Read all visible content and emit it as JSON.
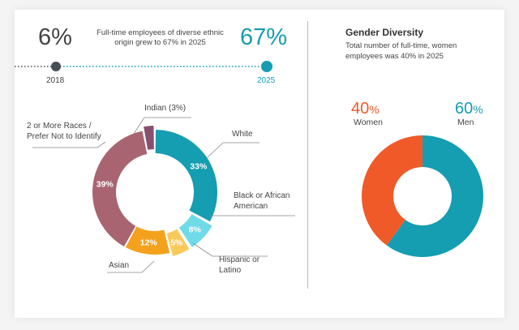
{
  "timeline": {
    "start_value": "6%",
    "end_value": "67%",
    "description_line1": "Full-time employees of diverse ethnic",
    "description_line2": "origin grew to 67% in 2025",
    "start_year": "2018",
    "end_year": "2025"
  },
  "gender": {
    "title": "Gender Diversity",
    "subtitle_line1": "Total number of full-time, women",
    "subtitle_line2": "employees was 40% in 2025",
    "women_value": "40",
    "men_value": "60",
    "percent_sign": "%",
    "women_label": "Women",
    "men_label": "Men"
  },
  "colors": {
    "teal": "#159db2",
    "orange": "#f05a28",
    "mauve": "#a86571",
    "plum": "#8a4f6e",
    "light_teal": "#6fdbe8",
    "amber": "#f4a21e",
    "yellow": "#f9c95a"
  },
  "chart_data": [
    {
      "type": "pie",
      "variant": "donut",
      "labels": [
        "White",
        "Black or African American",
        "Hispanic or Latino",
        "Asian",
        "2 or More Races / Prefer Not to Identify",
        "Indian (3%)"
      ],
      "label_lines": [
        [
          "White"
        ],
        [
          "Black or African",
          "American"
        ],
        [
          "Hispanic or",
          "Latino"
        ],
        [
          "Asian"
        ],
        [
          "2 or More Races /",
          "Prefer Not to Identify"
        ],
        [
          "Indian (3%)"
        ]
      ],
      "values": [
        33,
        8,
        5,
        12,
        39,
        3
      ],
      "data_labels": [
        "33%",
        "8%",
        "5%",
        "12%",
        "39%",
        ""
      ],
      "colors": [
        "#159db2",
        "#6fdbe8",
        "#f9c95a",
        "#f4a21e",
        "#a86571",
        "#8a4f6e"
      ],
      "exploded": [
        false,
        true,
        true,
        false,
        false,
        true
      ]
    },
    {
      "type": "pie",
      "variant": "donut",
      "labels": [
        "Women",
        "Men"
      ],
      "values": [
        40,
        60
      ],
      "colors": [
        "#f05a28",
        "#159db2"
      ]
    }
  ]
}
